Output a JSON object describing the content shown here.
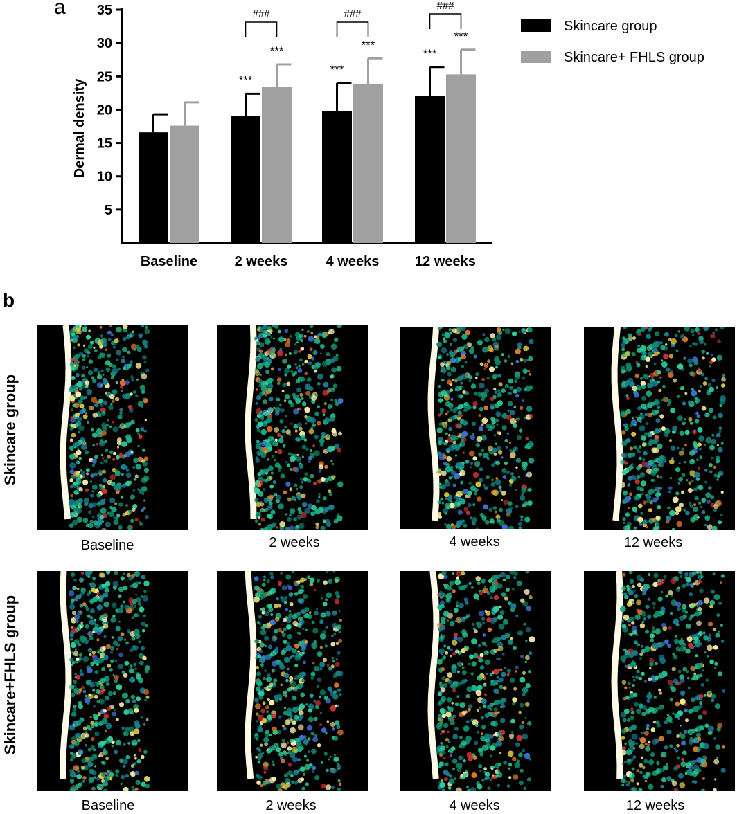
{
  "panel_a_label": "a",
  "panel_b_label": "b",
  "chart_data": {
    "type": "bar",
    "categories": [
      "Baseline",
      "2 weeks",
      "4 weeks",
      "12 weeks"
    ],
    "ylabel": "Dermal density",
    "ylim": [
      0,
      35
    ],
    "yticks": [
      5,
      10,
      15,
      20,
      25,
      30,
      35
    ],
    "legend": "top-right",
    "series": [
      {
        "name": "Skincare group",
        "color": "#000000",
        "values": [
          16.6,
          19.1,
          19.8,
          22.1
        ],
        "errors": [
          2.7,
          3.3,
          4.2,
          4.3
        ],
        "annotations": [
          "",
          "***",
          "***",
          "***"
        ]
      },
      {
        "name": "Skincare+ FHLS group",
        "color": "#a0a0a0",
        "values": [
          17.6,
          23.4,
          23.9,
          25.3
        ],
        "errors": [
          3.5,
          3.4,
          3.8,
          3.7
        ],
        "annotations": [
          "",
          "***",
          "***",
          "***"
        ]
      }
    ],
    "between_group_annotations": [
      "",
      "###",
      "###",
      "###"
    ]
  },
  "panel_b": {
    "rows": [
      {
        "label": "Skincare group",
        "captions": [
          "Baseline",
          "2 weeks",
          "4 weeks",
          "12 weeks"
        ]
      },
      {
        "label": "Skincare+FHLS group",
        "captions": [
          "Baseline",
          "2 weeks",
          "4 weeks",
          "12 weeks"
        ]
      }
    ]
  }
}
